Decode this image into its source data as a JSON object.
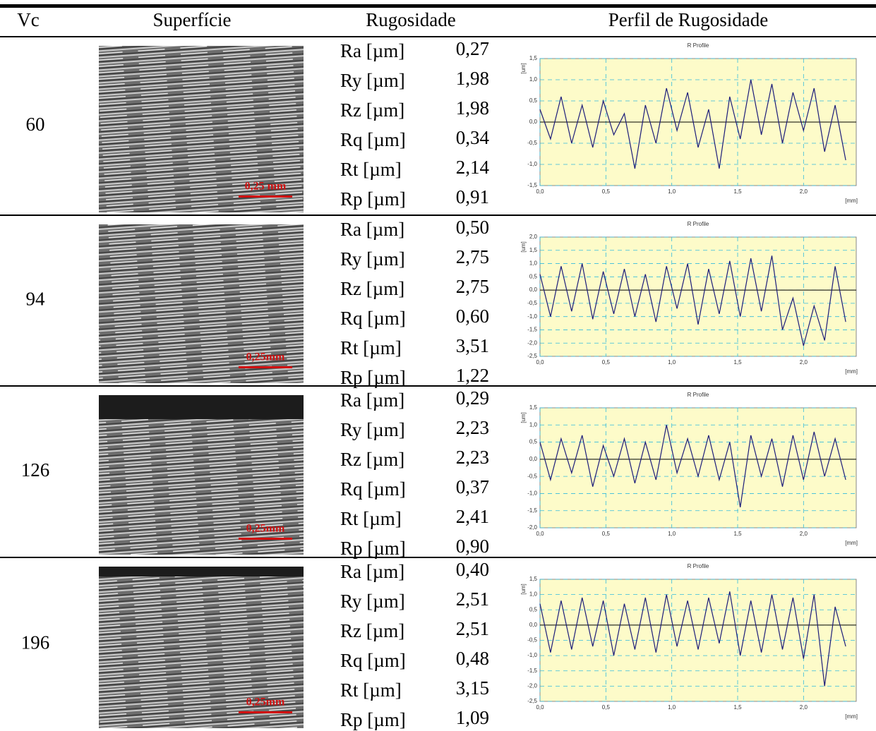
{
  "header": {
    "vc": "Vc",
    "surface": "Superfície",
    "roughness": "Rugosidade",
    "profile": "Perfil de Rugosidade"
  },
  "rows": [
    {
      "vc": "60",
      "scale_label": "0,25 mm",
      "params": [
        {
          "name": "Ra [µm]",
          "value": "0,27"
        },
        {
          "name": "Ry [µm]",
          "value": "1,98"
        },
        {
          "name": "Rz [µm]",
          "value": "1,98"
        },
        {
          "name": "Rq [µm]",
          "value": "0,34"
        },
        {
          "name": "Rt [µm]",
          "value": "2,14"
        },
        {
          "name": "Rp [µm]",
          "value": "0,91"
        }
      ],
      "chart_data": {
        "type": "line",
        "title": "R Profile",
        "y_label": "[um]",
        "x_label": "[mm]",
        "color": "#1c1c7a",
        "x": [
          0,
          0.08,
          0.16,
          0.24,
          0.32,
          0.4,
          0.48,
          0.56,
          0.64,
          0.72,
          0.8,
          0.88,
          0.96,
          1.04,
          1.12,
          1.2,
          1.28,
          1.36,
          1.44,
          1.52,
          1.6,
          1.68,
          1.76,
          1.84,
          1.92,
          2,
          2.08,
          2.16,
          2.24,
          2.32
        ],
        "values": [
          0.3,
          -0.4,
          0.6,
          -0.5,
          0.4,
          -0.6,
          0.5,
          -0.3,
          0.2,
          -1.1,
          0.4,
          -0.5,
          0.8,
          -0.2,
          0.7,
          -0.6,
          0.3,
          -1.1,
          0.6,
          -0.4,
          1.0,
          -0.3,
          0.9,
          -0.5,
          0.7,
          -0.2,
          0.8,
          -0.7,
          0.4,
          -0.9
        ],
        "xlim": [
          0,
          2.4
        ],
        "ylim": [
          -1.5,
          1.5
        ],
        "xticks": [
          {
            "value": 0,
            "label": "0,0"
          },
          {
            "value": 0.5,
            "label": "0,5"
          },
          {
            "value": 1,
            "label": "1,0"
          },
          {
            "value": 1.5,
            "label": "1,5"
          },
          {
            "value": 2,
            "label": "2,0"
          }
        ],
        "yticks": [
          {
            "value": 1.5,
            "label": "1,5"
          },
          {
            "value": 1,
            "label": "1,0"
          },
          {
            "value": 0.5,
            "label": "0,5"
          },
          {
            "value": 0,
            "label": "0,0"
          },
          {
            "value": -0.5,
            "label": "-0,5"
          },
          {
            "value": -1,
            "label": "-1,0"
          },
          {
            "value": -1.5,
            "label": "-1,5"
          }
        ],
        "grid": true
      }
    },
    {
      "vc": "94",
      "scale_label": "0,25mm",
      "params": [
        {
          "name": "Ra [µm]",
          "value": "0,50"
        },
        {
          "name": "Ry [µm]",
          "value": "2,75"
        },
        {
          "name": "Rz [µm]",
          "value": "2,75"
        },
        {
          "name": "Rq [µm]",
          "value": "0,60"
        },
        {
          "name": "Rt [µm]",
          "value": "3,51"
        },
        {
          "name": "Rp [µm]",
          "value": "1,22"
        }
      ],
      "chart_data": {
        "type": "line",
        "title": "R Profile",
        "y_label": "[um]",
        "x_label": "[mm]",
        "color": "#1c1c7a",
        "x": [
          0,
          0.08,
          0.16,
          0.24,
          0.32,
          0.4,
          0.48,
          0.56,
          0.64,
          0.72,
          0.8,
          0.88,
          0.96,
          1.04,
          1.12,
          1.2,
          1.28,
          1.36,
          1.44,
          1.52,
          1.6,
          1.68,
          1.76,
          1.84,
          1.92,
          2,
          2.08,
          2.16,
          2.24,
          2.32
        ],
        "values": [
          0.6,
          -1.0,
          0.9,
          -0.8,
          1.0,
          -1.1,
          0.7,
          -0.9,
          0.8,
          -1.0,
          0.6,
          -1.2,
          0.9,
          -0.7,
          1.0,
          -1.3,
          0.8,
          -0.9,
          1.1,
          -1.0,
          1.2,
          -0.8,
          1.3,
          -1.5,
          -0.3,
          -2.1,
          -0.6,
          -1.9,
          0.9,
          -1.2
        ],
        "xlim": [
          0,
          2.4
        ],
        "ylim": [
          -2.5,
          2
        ],
        "xticks": [
          {
            "value": 0,
            "label": "0,0"
          },
          {
            "value": 0.5,
            "label": "0,5"
          },
          {
            "value": 1,
            "label": "1,0"
          },
          {
            "value": 1.5,
            "label": "1,5"
          },
          {
            "value": 2,
            "label": "2,0"
          }
        ],
        "yticks": [
          {
            "value": 2,
            "label": "2,0"
          },
          {
            "value": 1.5,
            "label": "1,5"
          },
          {
            "value": 1,
            "label": "1,0"
          },
          {
            "value": 0.5,
            "label": "0,5"
          },
          {
            "value": 0,
            "label": "0,0"
          },
          {
            "value": -0.5,
            "label": "-0,5"
          },
          {
            "value": -1,
            "label": "-1,0"
          },
          {
            "value": -1.5,
            "label": "-1,5"
          },
          {
            "value": -2,
            "label": "-2,0"
          },
          {
            "value": -2.5,
            "label": "-2,5"
          }
        ],
        "grid": true
      }
    },
    {
      "vc": "126",
      "scale_label": "0,25mm",
      "params": [
        {
          "name": "Ra [µm]",
          "value": "0,29"
        },
        {
          "name": "Ry [µm]",
          "value": "2,23"
        },
        {
          "name": "Rz [µm]",
          "value": "2,23"
        },
        {
          "name": "Rq [µm]",
          "value": "0,37"
        },
        {
          "name": "Rt [µm]",
          "value": "2,41"
        },
        {
          "name": "Rp [µm]",
          "value": "0,90"
        }
      ],
      "chart_data": {
        "type": "line",
        "title": "R Profile",
        "y_label": "[um]",
        "x_label": "[mm]",
        "color": "#1c1c7a",
        "x": [
          0,
          0.08,
          0.16,
          0.24,
          0.32,
          0.4,
          0.48,
          0.56,
          0.64,
          0.72,
          0.8,
          0.88,
          0.96,
          1.04,
          1.12,
          1.2,
          1.28,
          1.36,
          1.44,
          1.52,
          1.6,
          1.68,
          1.76,
          1.84,
          1.92,
          2,
          2.08,
          2.16,
          2.24,
          2.32
        ],
        "values": [
          0.5,
          -0.6,
          0.6,
          -0.4,
          0.7,
          -0.8,
          0.4,
          -0.5,
          0.6,
          -0.7,
          0.5,
          -0.6,
          1.0,
          -0.4,
          0.6,
          -0.5,
          0.7,
          -0.6,
          0.5,
          -1.4,
          0.7,
          -0.5,
          0.6,
          -0.8,
          0.7,
          -0.6,
          0.8,
          -0.5,
          0.6,
          -0.6
        ],
        "xlim": [
          0,
          2.4
        ],
        "ylim": [
          -2,
          1.5
        ],
        "xticks": [
          {
            "value": 0,
            "label": "0,0"
          },
          {
            "value": 0.5,
            "label": "0,5"
          },
          {
            "value": 1,
            "label": "1,0"
          },
          {
            "value": 1.5,
            "label": "1,5"
          },
          {
            "value": 2,
            "label": "2,0"
          }
        ],
        "yticks": [
          {
            "value": 1.5,
            "label": "1,5"
          },
          {
            "value": 1,
            "label": "1,0"
          },
          {
            "value": 0.5,
            "label": "0,5"
          },
          {
            "value": 0,
            "label": "0,0"
          },
          {
            "value": -0.5,
            "label": "-0,5"
          },
          {
            "value": -1,
            "label": "-1,0"
          },
          {
            "value": -1.5,
            "label": "-1,5"
          },
          {
            "value": -2,
            "label": "-2,0"
          }
        ],
        "grid": true
      }
    },
    {
      "vc": "196",
      "scale_label": "0,25mm",
      "params": [
        {
          "name": "Ra [µm]",
          "value": "0,40"
        },
        {
          "name": "Ry [µm]",
          "value": "2,51"
        },
        {
          "name": "Rz [µm]",
          "value": "2,51"
        },
        {
          "name": "Rq [µm]",
          "value": "0,48"
        },
        {
          "name": "Rt [µm]",
          "value": "3,15"
        },
        {
          "name": "Rp [µm]",
          "value": "1,09"
        }
      ],
      "chart_data": {
        "type": "line",
        "title": "R Profile",
        "y_label": "[um]",
        "x_label": "[mm]",
        "color": "#1c1c7a",
        "x": [
          0,
          0.08,
          0.16,
          0.24,
          0.32,
          0.4,
          0.48,
          0.56,
          0.64,
          0.72,
          0.8,
          0.88,
          0.96,
          1.04,
          1.12,
          1.2,
          1.28,
          1.36,
          1.44,
          1.52,
          1.6,
          1.68,
          1.76,
          1.84,
          1.92,
          2,
          2.08,
          2.16,
          2.24,
          2.32
        ],
        "values": [
          0.7,
          -0.9,
          0.8,
          -0.8,
          0.9,
          -0.7,
          0.8,
          -1.0,
          0.7,
          -0.8,
          0.9,
          -0.9,
          1.0,
          -0.7,
          0.8,
          -0.8,
          0.9,
          -0.6,
          1.1,
          -1.0,
          0.8,
          -0.9,
          1.0,
          -0.8,
          0.9,
          -1.1,
          1.0,
          -2.0,
          0.6,
          -0.7
        ],
        "xlim": [
          0,
          2.4
        ],
        "ylim": [
          -2.5,
          1.5
        ],
        "xticks": [
          {
            "value": 0,
            "label": "0,0"
          },
          {
            "value": 0.5,
            "label": "0,5"
          },
          {
            "value": 1,
            "label": "1,0"
          },
          {
            "value": 1.5,
            "label": "1,5"
          },
          {
            "value": 2,
            "label": "2,0"
          }
        ],
        "yticks": [
          {
            "value": 1.5,
            "label": "1,5"
          },
          {
            "value": 1,
            "label": "1,0"
          },
          {
            "value": 0.5,
            "label": "0,5"
          },
          {
            "value": 0,
            "label": "0,0"
          },
          {
            "value": -0.5,
            "label": "-0,5"
          },
          {
            "value": -1,
            "label": "-1,0"
          },
          {
            "value": -1.5,
            "label": "-1,5"
          },
          {
            "value": -2,
            "label": "-2,0"
          },
          {
            "value": -2.5,
            "label": "-2,5"
          }
        ],
        "grid": true
      }
    }
  ]
}
